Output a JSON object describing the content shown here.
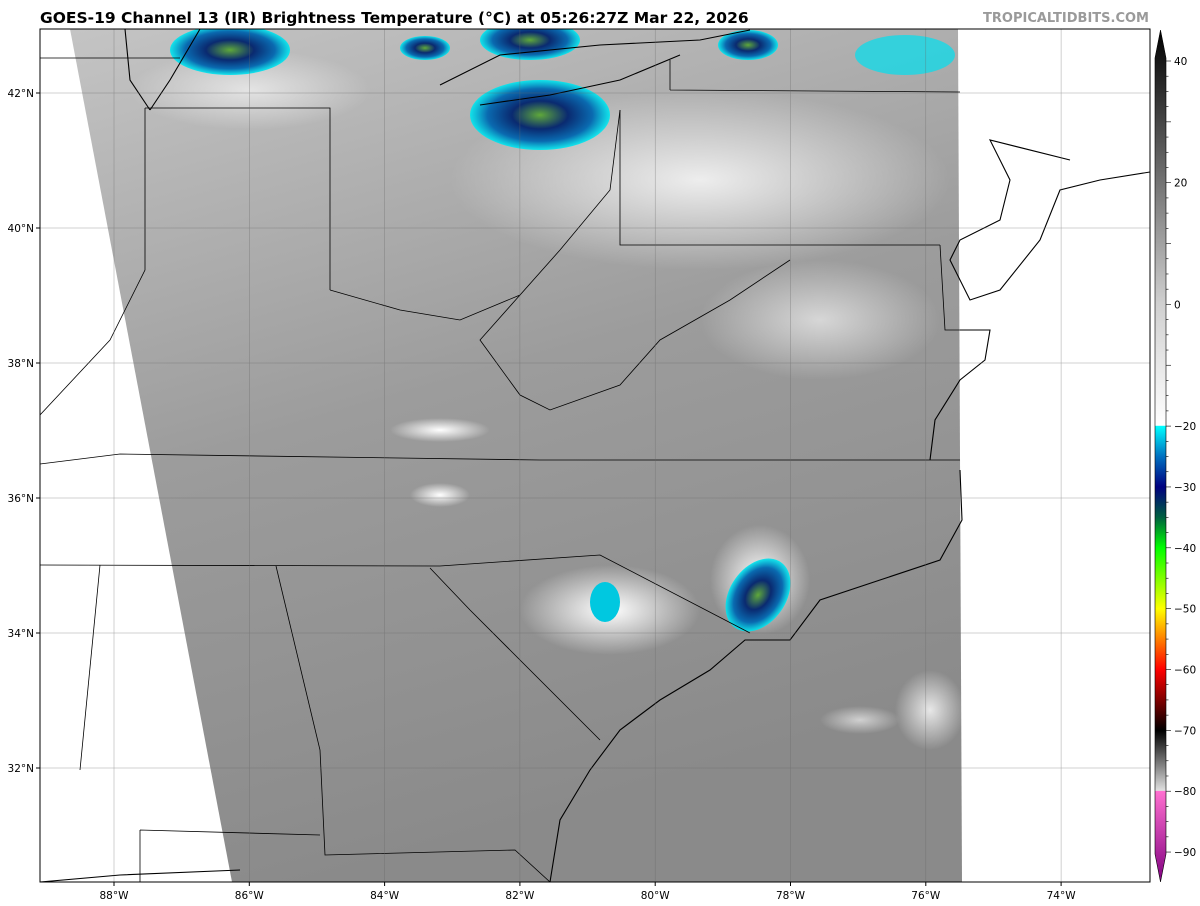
{
  "header": {
    "title": "GOES-19 Channel 13 (IR) Brightness Temperature (°C) at 05:26:27Z Mar 22, 2026",
    "credit": "TROPICALTIDBITS.COM"
  },
  "map": {
    "lon_labels": [
      "88°W",
      "86°W",
      "84°W",
      "82°W",
      "80°W",
      "78°W",
      "76°W",
      "74°W"
    ],
    "lat_labels": [
      "42°N",
      "40°N",
      "38°N",
      "36°N",
      "34°N",
      "32°N"
    ],
    "gridlines": true
  },
  "colorbar": {
    "ticks": [
      "40",
      "20",
      "0",
      "−20",
      "−30",
      "−40",
      "−50",
      "−60",
      "−70",
      "−80",
      "−90"
    ],
    "tick_values": [
      40,
      20,
      0,
      -20,
      -30,
      -40,
      -50,
      -60,
      -70,
      -80,
      -90
    ],
    "range": [
      -90,
      40
    ],
    "extend": "both",
    "stops": [
      {
        "v": 45,
        "c": "#000000"
      },
      {
        "v": 0,
        "c": "#d0d0d0"
      },
      {
        "v": -19.9,
        "c": "#ffffff"
      },
      {
        "v": -20,
        "c": "#00ffff"
      },
      {
        "v": -25,
        "c": "#0070c0"
      },
      {
        "v": -30,
        "c": "#000080"
      },
      {
        "v": -35,
        "c": "#006040"
      },
      {
        "v": -40,
        "c": "#00ff00"
      },
      {
        "v": -50,
        "c": "#ffff00"
      },
      {
        "v": -55,
        "c": "#ff8000"
      },
      {
        "v": -60,
        "c": "#ff0000"
      },
      {
        "v": -65,
        "c": "#800000"
      },
      {
        "v": -70,
        "c": "#000000"
      },
      {
        "v": -79.9,
        "c": "#e0e0e0"
      },
      {
        "v": -80,
        "c": "#ff70d0"
      },
      {
        "v": -95,
        "c": "#800080"
      }
    ]
  }
}
